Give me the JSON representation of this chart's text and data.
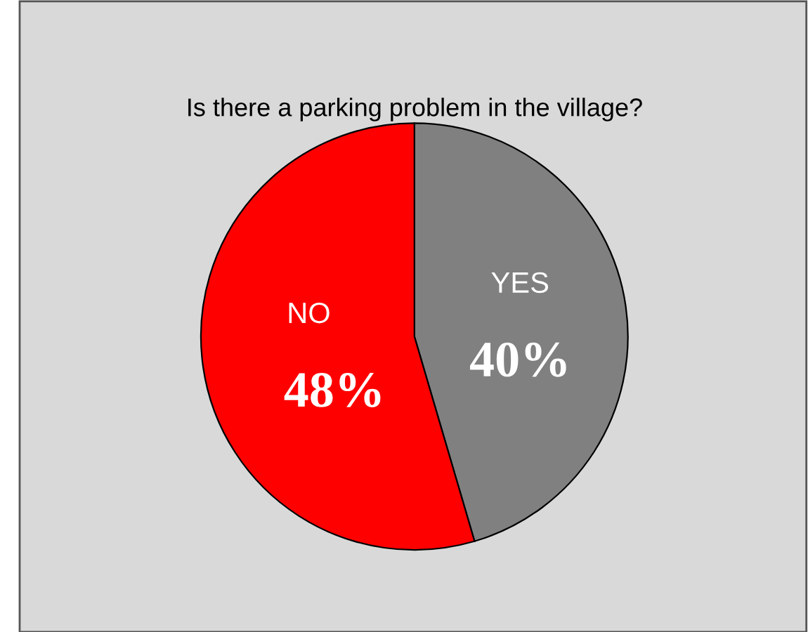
{
  "chart_data": {
    "type": "pie",
    "title": "Is there a parking problem in the village?",
    "categories": [
      "YES",
      "NO"
    ],
    "values": [
      40,
      48
    ],
    "value_labels": [
      "40%",
      "48%"
    ],
    "colors": [
      "#808080",
      "#ff0000"
    ]
  }
}
